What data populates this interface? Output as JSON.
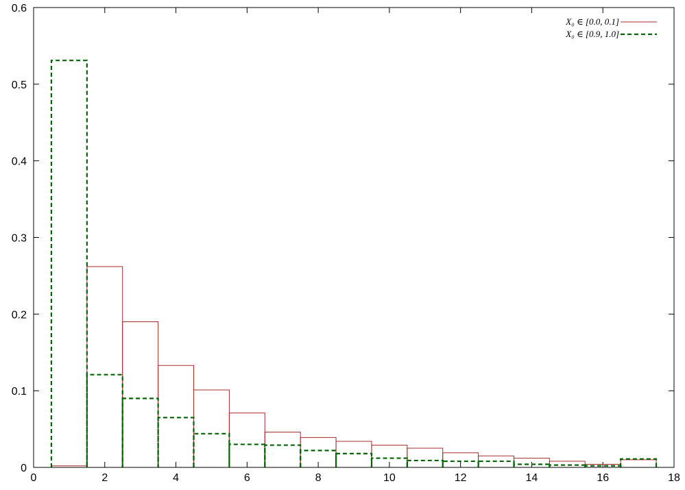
{
  "chart_data": {
    "type": "bar",
    "title": "",
    "xlabel": "",
    "ylabel": "",
    "xlim": [
      0,
      18
    ],
    "ylim": [
      0,
      0.6
    ],
    "x_ticks": [
      0,
      2,
      4,
      6,
      8,
      10,
      12,
      14,
      16,
      18
    ],
    "y_ticks": [
      0,
      0.1,
      0.2,
      0.3,
      0.4,
      0.5,
      0.6
    ],
    "bin_width": 1,
    "categories": [
      1,
      2,
      3,
      4,
      5,
      6,
      7,
      8,
      9,
      10,
      11,
      12,
      13,
      14,
      15,
      16,
      17
    ],
    "legend_position": "top-right",
    "series": [
      {
        "name": "X₀ ∈ [0.0, 0.1]",
        "color": "#a52a2a",
        "style": "solid-step",
        "values": [
          0.002,
          0.262,
          0.19,
          0.133,
          0.101,
          0.071,
          0.046,
          0.039,
          0.034,
          0.029,
          0.025,
          0.019,
          0.015,
          0.012,
          0.008,
          0.004,
          0.01
        ]
      },
      {
        "name": "X₀ ∈ [0.9, 1.0]",
        "color": "#006400",
        "style": "dashed-step",
        "values": [
          0.531,
          0.121,
          0.09,
          0.065,
          0.044,
          0.03,
          0.029,
          0.022,
          0.018,
          0.012,
          0.009,
          0.008,
          0.008,
          0.004,
          0.003,
          0.002,
          0.011
        ]
      }
    ]
  }
}
